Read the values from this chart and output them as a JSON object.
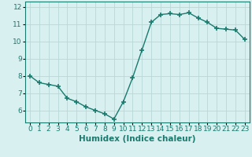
{
  "x": [
    0,
    1,
    2,
    3,
    4,
    5,
    6,
    7,
    8,
    9,
    10,
    11,
    12,
    13,
    14,
    15,
    16,
    17,
    18,
    19,
    20,
    21,
    22,
    23
  ],
  "y": [
    8.0,
    7.6,
    7.5,
    7.4,
    6.7,
    6.5,
    6.2,
    6.0,
    5.8,
    5.5,
    6.5,
    7.9,
    9.5,
    11.1,
    11.55,
    11.6,
    11.55,
    11.65,
    11.35,
    11.1,
    10.75,
    10.7,
    10.65,
    10.1
  ],
  "line_color": "#1a7a6e",
  "marker": "+",
  "marker_size": 4,
  "bg_color": "#d8f0f0",
  "grid_color": "#b8d8d8",
  "xlabel": "Humidex (Indice chaleur)",
  "xlim": [
    -0.5,
    23.5
  ],
  "ylim": [
    5.3,
    12.3
  ],
  "yticks": [
    6,
    7,
    8,
    9,
    10,
    11,
    12
  ],
  "xticks": [
    0,
    1,
    2,
    3,
    4,
    5,
    6,
    7,
    8,
    9,
    10,
    11,
    12,
    13,
    14,
    15,
    16,
    17,
    18,
    19,
    20,
    21,
    22,
    23
  ],
  "line_width": 1.0,
  "tick_fontsize": 6.5,
  "xlabel_fontsize": 7.5
}
